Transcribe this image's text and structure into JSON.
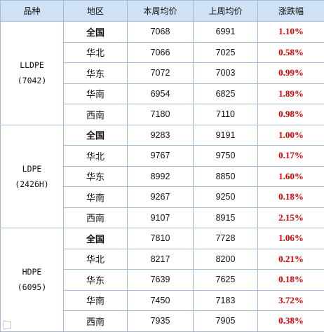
{
  "headers": [
    "品种",
    "地区",
    "本周均价",
    "上周均价",
    "涨跌幅"
  ],
  "groups": [
    {
      "product": "LLDPE",
      "grade": "(7042)",
      "rows": [
        {
          "region": "全国",
          "this_week": "7068",
          "last_week": "6991",
          "change": "1.10%"
        },
        {
          "region": "华北",
          "this_week": "7066",
          "last_week": "7025",
          "change": "0.58%"
        },
        {
          "region": "华东",
          "this_week": "7072",
          "last_week": "7003",
          "change": "0.99%"
        },
        {
          "region": "华南",
          "this_week": "6954",
          "last_week": "6825",
          "change": "1.89%"
        },
        {
          "region": "西南",
          "this_week": "7180",
          "last_week": "7110",
          "change": "0.98%"
        }
      ]
    },
    {
      "product": "LDPE",
      "grade": "(2426H)",
      "rows": [
        {
          "region": "全国",
          "this_week": "9283",
          "last_week": "9191",
          "change": "1.00%"
        },
        {
          "region": "华北",
          "this_week": "9767",
          "last_week": "9750",
          "change": "0.17%"
        },
        {
          "region": "华东",
          "this_week": "8992",
          "last_week": "8850",
          "change": "1.60%"
        },
        {
          "region": "华南",
          "this_week": "9267",
          "last_week": "9250",
          "change": "0.18%"
        },
        {
          "region": "西南",
          "this_week": "9107",
          "last_week": "8915",
          "change": "2.15%"
        }
      ]
    },
    {
      "product": "HDPE",
      "grade": "(6095)",
      "rows": [
        {
          "region": "全国",
          "this_week": "7810",
          "last_week": "7728",
          "change": "1.06%"
        },
        {
          "region": "华北",
          "this_week": "8217",
          "last_week": "8200",
          "change": "0.21%"
        },
        {
          "region": "华东",
          "this_week": "7639",
          "last_week": "7625",
          "change": "0.18%"
        },
        {
          "region": "华南",
          "this_week": "7450",
          "last_week": "7183",
          "change": "3.72%"
        },
        {
          "region": "西南",
          "this_week": "7935",
          "last_week": "7905",
          "change": "0.38%"
        }
      ]
    }
  ],
  "colors": {
    "header_bg": "#cfe1f5",
    "border": "#a3bbd9",
    "change_text": "#e00000"
  }
}
